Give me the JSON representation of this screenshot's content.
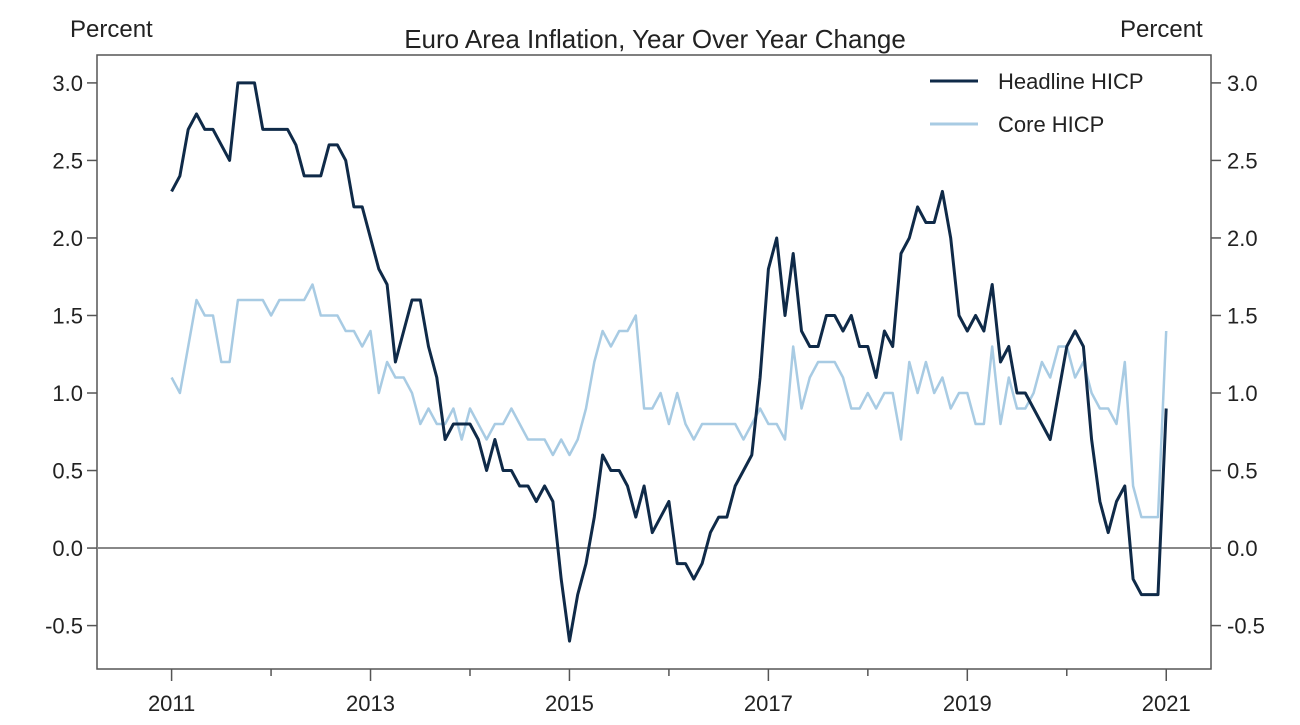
{
  "chart_data": {
    "type": "line",
    "title": "Euro Area Inflation, Year Over Year Change",
    "ylabel_left": "Percent",
    "ylabel_right": "Percent",
    "xlabel": "",
    "xlim": [
      2010.25,
      2021.45
    ],
    "ylim": [
      -0.78,
      3.18
    ],
    "x_ticks": [
      2011,
      2013,
      2015,
      2017,
      2019,
      2021
    ],
    "x_tick_labels": [
      "2011",
      "2013",
      "2015",
      "2017",
      "2019",
      "2021"
    ],
    "x_minor_ticks": [
      2012,
      2014,
      2016,
      2018,
      2020
    ],
    "y_ticks": [
      -0.5,
      0.0,
      0.5,
      1.0,
      1.5,
      2.0,
      2.5,
      3.0
    ],
    "y_tick_labels": [
      "-0.5",
      "0.0",
      "0.5",
      "1.0",
      "1.5",
      "2.0",
      "2.5",
      "3.0"
    ],
    "zero_line": 0.0,
    "grid": false,
    "legend_position": "top-right",
    "x_start": 2011.0,
    "x_step": 0.0833333,
    "series": [
      {
        "name": "Headline HICP",
        "color": "#0f2a48",
        "values": [
          2.3,
          2.4,
          2.7,
          2.8,
          2.7,
          2.7,
          2.6,
          2.5,
          3.0,
          3.0,
          3.0,
          2.7,
          2.7,
          2.7,
          2.7,
          2.6,
          2.4,
          2.4,
          2.4,
          2.6,
          2.6,
          2.5,
          2.2,
          2.2,
          2.0,
          1.8,
          1.7,
          1.2,
          1.4,
          1.6,
          1.6,
          1.3,
          1.1,
          0.7,
          0.8,
          0.8,
          0.8,
          0.7,
          0.5,
          0.7,
          0.5,
          0.5,
          0.4,
          0.4,
          0.3,
          0.4,
          0.3,
          -0.2,
          -0.6,
          -0.3,
          -0.1,
          0.2,
          0.6,
          0.5,
          0.5,
          0.4,
          0.2,
          0.4,
          0.1,
          0.2,
          0.3,
          -0.1,
          -0.1,
          -0.2,
          -0.1,
          0.1,
          0.2,
          0.2,
          0.4,
          0.5,
          0.6,
          1.1,
          1.8,
          2.0,
          1.5,
          1.9,
          1.4,
          1.3,
          1.3,
          1.5,
          1.5,
          1.4,
          1.5,
          1.3,
          1.3,
          1.1,
          1.4,
          1.3,
          1.9,
          2.0,
          2.2,
          2.1,
          2.1,
          2.3,
          2.0,
          1.5,
          1.4,
          1.5,
          1.4,
          1.7,
          1.2,
          1.3,
          1.0,
          1.0,
          0.9,
          0.8,
          0.7,
          1.0,
          1.3,
          1.4,
          1.3,
          0.7,
          0.3,
          0.1,
          0.3,
          0.4,
          -0.2,
          -0.3,
          -0.3,
          -0.3,
          0.9
        ]
      },
      {
        "name": "Core HICP",
        "color": "#a8cbe3",
        "values": [
          1.1,
          1.0,
          1.3,
          1.6,
          1.5,
          1.5,
          1.2,
          1.2,
          1.6,
          1.6,
          1.6,
          1.6,
          1.5,
          1.6,
          1.6,
          1.6,
          1.6,
          1.7,
          1.5,
          1.5,
          1.5,
          1.4,
          1.4,
          1.3,
          1.4,
          1.0,
          1.2,
          1.1,
          1.1,
          1.0,
          0.8,
          0.9,
          0.8,
          0.8,
          0.9,
          0.7,
          0.9,
          0.8,
          0.7,
          0.8,
          0.8,
          0.9,
          0.8,
          0.7,
          0.7,
          0.7,
          0.6,
          0.7,
          0.6,
          0.7,
          0.9,
          1.2,
          1.4,
          1.3,
          1.4,
          1.4,
          1.5,
          0.9,
          0.9,
          1.0,
          0.8,
          1.0,
          0.8,
          0.7,
          0.8,
          0.8,
          0.8,
          0.8,
          0.8,
          0.7,
          0.8,
          0.9,
          0.8,
          0.8,
          0.7,
          1.3,
          0.9,
          1.1,
          1.2,
          1.2,
          1.2,
          1.1,
          0.9,
          0.9,
          1.0,
          0.9,
          1.0,
          1.0,
          0.7,
          1.2,
          1.0,
          1.2,
          1.0,
          1.1,
          0.9,
          1.0,
          1.0,
          0.8,
          0.8,
          1.3,
          0.8,
          1.1,
          0.9,
          0.9,
          1.0,
          1.2,
          1.1,
          1.3,
          1.3,
          1.1,
          1.2,
          1.0,
          0.9,
          0.9,
          0.8,
          1.2,
          0.4,
          0.2,
          0.2,
          0.2,
          1.4
        ]
      }
    ]
  }
}
